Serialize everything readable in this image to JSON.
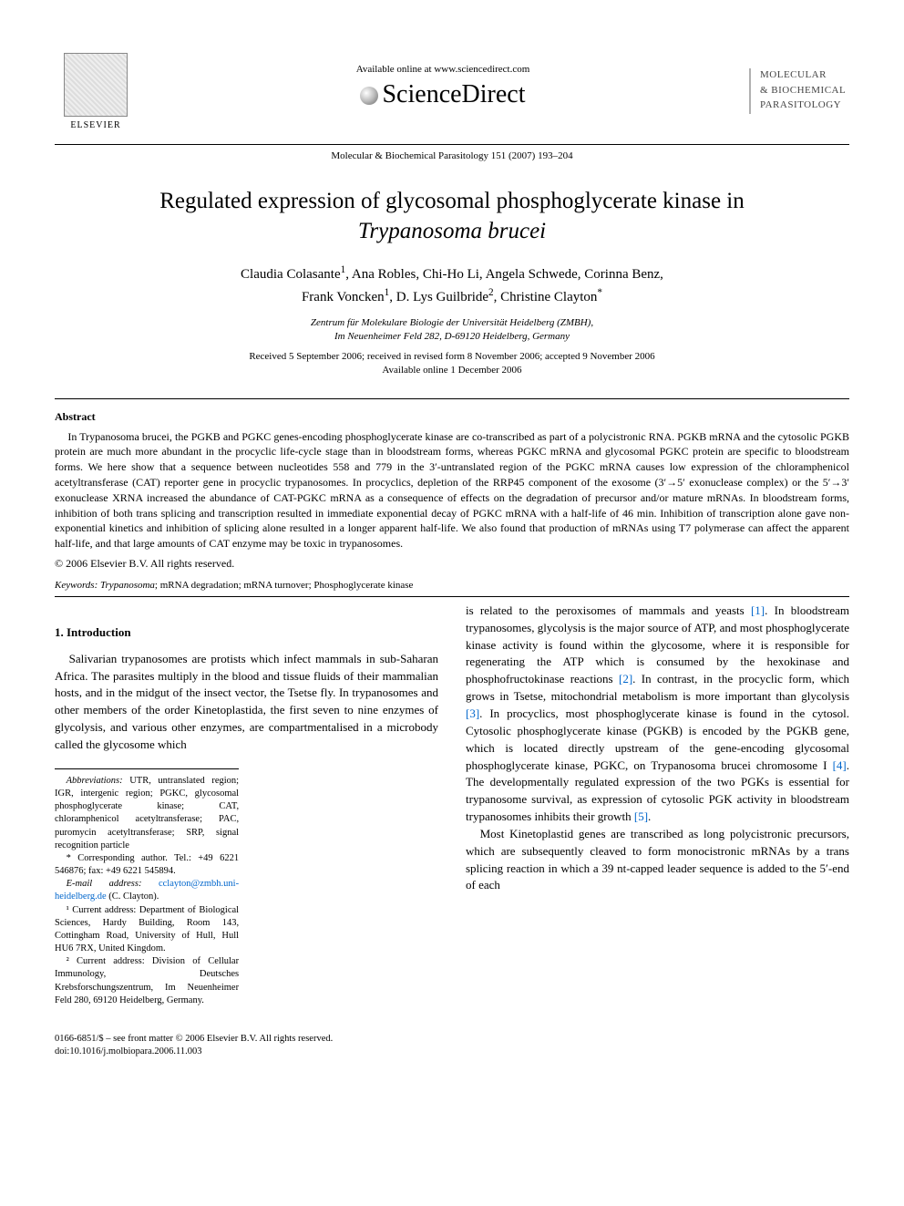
{
  "header": {
    "elsevier": "ELSEVIER",
    "avail_online": "Available online at www.sciencedirect.com",
    "sd_brand": "ScienceDirect",
    "citation": "Molecular & Biochemical Parasitology 151 (2007) 193–204",
    "journal_badge": [
      "MOLECULAR",
      "& BIOCHEMICAL",
      "PARASITOLOGY"
    ]
  },
  "title": "Regulated expression of glycosomal phosphoglycerate kinase in Trypanosoma brucei",
  "authors_html": "Claudia Colasante<sup>1</sup>, Ana Robles, Chi-Ho Li, Angela Schwede, Corinna Benz, Frank Voncken<sup>1</sup>, D. Lys Guilbride<sup>2</sup>, Christine Clayton<sup>*</sup>",
  "affiliation": [
    "Zentrum für Molekulare Biologie der Universität Heidelberg (ZMBH),",
    "Im Neuenheimer Feld 282, D-69120 Heidelberg, Germany"
  ],
  "dates": [
    "Received 5 September 2006; received in revised form 8 November 2006; accepted 9 November 2006",
    "Available online 1 December 2006"
  ],
  "abstract": {
    "heading": "Abstract",
    "body": "In Trypanosoma brucei, the PGKB and PGKC genes-encoding phosphoglycerate kinase are co-transcribed as part of a polycistronic RNA. PGKB mRNA and the cytosolic PGKB protein are much more abundant in the procyclic life-cycle stage than in bloodstream forms, whereas PGKC mRNA and glycosomal PGKC protein are specific to bloodstream forms. We here show that a sequence between nucleotides 558 and 779 in the 3′-untranslated region of the PGKC mRNA causes low expression of the chloramphenicol acetyltransferase (CAT) reporter gene in procyclic trypanosomes. In procyclics, depletion of the RRP45 component of the exosome (3′→5′ exonuclease complex) or the 5′→3′ exonuclease XRNA increased the abundance of CAT-PGKC mRNA as a consequence of effects on the degradation of precursor and/or mature mRNAs. In bloodstream forms, inhibition of both trans splicing and transcription resulted in immediate exponential decay of PGKC mRNA with a half-life of 46 min. Inhibition of transcription alone gave non-exponential kinetics and inhibition of splicing alone resulted in a longer apparent half-life. We also found that production of mRNAs using T7 polymerase can affect the apparent half-life, and that large amounts of CAT enzyme may be toxic in trypanosomes.",
    "copyright": "© 2006 Elsevier B.V. All rights reserved."
  },
  "keywords": {
    "label": "Keywords:",
    "text": "Trypanosoma; mRNA degradation; mRNA turnover; Phosphoglycerate kinase"
  },
  "intro": {
    "heading": "1. Introduction",
    "p1": "Salivarian trypanosomes are protists which infect mammals in sub-Saharan Africa. The parasites multiply in the blood and tissue fluids of their mammalian hosts, and in the midgut of the insect vector, the Tsetse fly. In trypanosomes and other members of the order Kinetoplastida, the first seven to nine enzymes of glycolysis, and various other enzymes, are compartmentalised in a microbody called the glycosome which",
    "p1b_pre": "is related to the peroxisomes of mammals and yeasts ",
    "ref1": "[1]",
    "p1b_post": ". In bloodstream trypanosomes, glycolysis is the major source of ATP, and most phosphoglycerate kinase activity is found within the glycosome, where it is responsible for regenerating the ATP which is consumed by the hexokinase and phosphofructokinase reactions ",
    "ref2": "[2]",
    "p1b_post2": ". In contrast, in the procyclic form, which grows in Tsetse, mitochondrial metabolism is more important than glycolysis ",
    "ref3": "[3]",
    "p1b_post3": ". In procyclics, most phosphoglycerate kinase is found in the cytosol. Cytosolic phosphoglycerate kinase (PGKB) is encoded by the PGKB gene, which is located directly upstream of the gene-encoding glycosomal phosphoglycerate kinase, PGKC, on Trypanosoma brucei chromosome I ",
    "ref4": "[4]",
    "p1b_post4": ". The developmentally regulated expression of the two PGKs is essential for trypanosome survival, as expression of cytosolic PGK activity in bloodstream trypanosomes inhibits their growth ",
    "ref5": "[5]",
    "p1b_post5": ".",
    "p2": "Most Kinetoplastid genes are transcribed as long polycistronic precursors, which are subsequently cleaved to form monocistronic mRNAs by a trans splicing reaction in which a 39 nt-capped leader sequence is added to the 5′-end of each"
  },
  "footnotes": {
    "abbrev_label": "Abbreviations:",
    "abbrev": "UTR, untranslated region; IGR, intergenic region; PGKC, glycosomal phosphoglycerate kinase; CAT, chloramphenicol acetyltransferase; PAC, puromycin acetyltransferase; SRP, signal recognition particle",
    "corr_label": "* Corresponding author. Tel.: +49 6221 546876; fax: +49 6221 545894.",
    "email_label": "E-mail address:",
    "email": "cclayton@zmbh.uni-heidelberg.de",
    "email_after": "(C. Clayton).",
    "note1": "¹ Current address: Department of Biological Sciences, Hardy Building, Room 143, Cottingham Road, University of Hull, Hull HU6 7RX, United Kingdom.",
    "note2": "² Current address: Division of Cellular Immunology, Deutsches Krebsforschungszentrum, Im Neuenheimer Feld 280, 69120 Heidelberg, Germany."
  },
  "footer": {
    "line1": "0166-6851/$ – see front matter © 2006 Elsevier B.V. All rights reserved.",
    "line2": "doi:10.1016/j.molbiopara.2006.11.003"
  }
}
